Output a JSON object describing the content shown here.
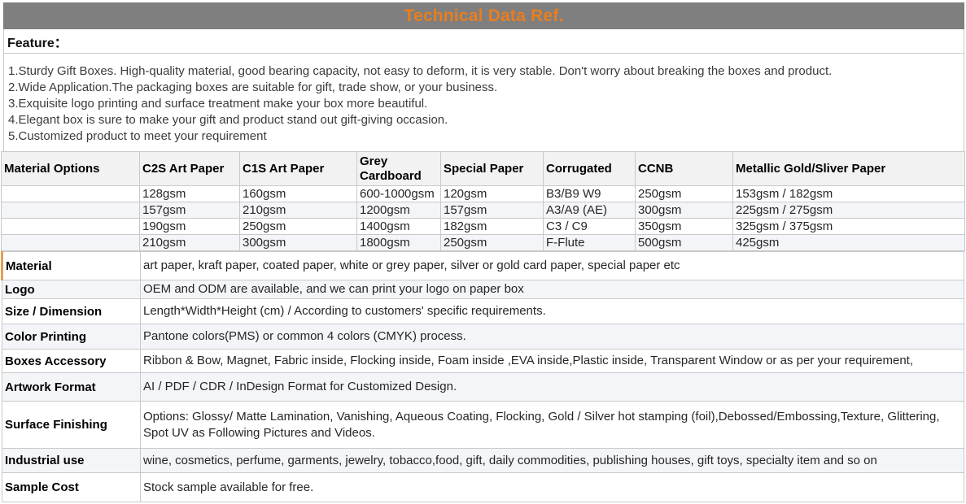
{
  "title_bar": {
    "text": "Technical Data Ref."
  },
  "feature": {
    "heading": "Feature：",
    "items": [
      "1.Sturdy Gift Boxes. High-quality material, good bearing capacity, not easy to deform, it is very stable. Don't worry about breaking the boxes and product.",
      "2.Wide Application.The packaging boxes are suitable for gift, trade show, or your business.",
      "3.Exquisite logo printing and surface treatment make your box more beautiful.",
      "4.Elegant box is sure to make your gift and product stand out gift-giving occasion.",
      "5.Customized product to meet your requirement"
    ]
  },
  "materials_table": {
    "headers": [
      "Material Options",
      "C2S Art Paper",
      "C1S Art Paper",
      "Grey Cardboard",
      "Special Paper",
      "Corrugated",
      "CCNB",
      "Metallic Gold/Sliver Paper"
    ],
    "rows": [
      [
        "",
        "128gsm",
        "160gsm",
        "600-1000gsm",
        "120gsm",
        "B3/B9 W9",
        "250gsm",
        "153gsm / 182gsm"
      ],
      [
        "",
        "157gsm",
        "210gsm",
        "1200gsm",
        "157gsm",
        "A3/A9 (AE)",
        "300gsm",
        "225gsm / 275gsm"
      ],
      [
        "",
        "190gsm",
        "250gsm",
        "1400gsm",
        "182gsm",
        "C3 / C9",
        "350gsm",
        "325gsm / 375gsm"
      ],
      [
        "",
        "210gsm",
        "300gsm",
        "1800gsm",
        "250gsm",
        "F-Flute",
        "500gsm",
        "425gsm"
      ]
    ]
  },
  "spec_rows": [
    {
      "label": "Material",
      "value": "art paper, kraft paper, coated paper, white or grey paper, silver or gold card paper, special paper etc"
    },
    {
      "label": "Logo",
      "value": "OEM and ODM are available, and we can print your logo on paper box"
    },
    {
      "label": "Size / Dimension",
      "value": "Length*Width*Height (cm) / According to customers' specific requirements."
    },
    {
      "label": "Color Printing",
      "value": "Pantone colors(PMS) or common 4 colors (CMYK) process."
    },
    {
      "label": "Boxes Accessory",
      "value": "Ribbon & Bow, Magnet, Fabric inside, Flocking inside, Foam inside ,EVA inside,Plastic inside, Transparent Window or as per your requirement,"
    },
    {
      "label": "Artwork Format",
      "value": "AI / PDF / CDR / InDesign Format for Customized Design."
    },
    {
      "label": "Surface Finishing",
      "value": "Options: Glossy/ Matte Lamination, Vanishing, Aqueous Coating, Flocking, Gold / Silver hot stamping (foil),Debossed/Embossing,Texture, Glittering, Spot UV as Following Pictures and Videos."
    },
    {
      "label": "Industrial use",
      "value": "wine, cosmetics, perfume, garments, jewelry, tobacco,food, gift, daily commodities, publishing houses, gift toys, specialty item and so on"
    },
    {
      "label": "Sample Cost",
      "value": "Stock sample available for free."
    }
  ],
  "colors": {
    "title_bg": "#7F7F7F",
    "title_text": "#E87E1F",
    "border": "#C9C9C9",
    "alt_row_bg": "#F4F5F8",
    "accent_border": "#DFA050"
  }
}
